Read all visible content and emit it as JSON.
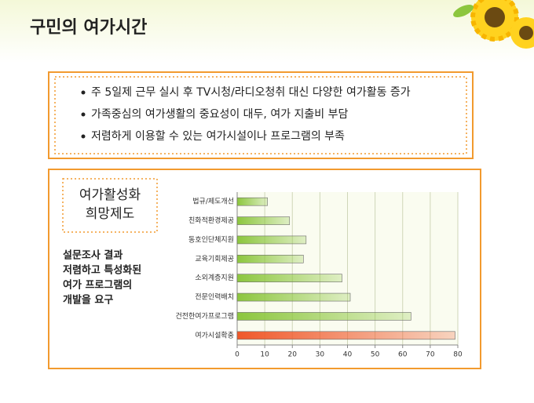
{
  "header": {
    "title": "구민의 여가시간"
  },
  "bullets": [
    "주 5일제 근무 실시 후 TV시청/라디오청취 대신 다양한 여가활동 증가",
    "가족중심의 여가생활의 중요성이 대두, 여가 지출비 부담",
    "저렴하게 이용할 수 있는 여가시설이나 프로그램의 부족"
  ],
  "box_label": [
    "여가활성화",
    "희망제도"
  ],
  "description": [
    "설문조사 결과",
    "저렴하고 특성화된",
    "여가 프로그램의",
    "개발을 요구"
  ],
  "chart_data": {
    "type": "hbar",
    "categories": [
      "법규/제도개선",
      "친화적환경제공",
      "동호인단체지원",
      "교육기회제공",
      "소외계층지원",
      "전문인력배치",
      "건전한여가프로그램",
      "여가시설확충"
    ],
    "values": [
      11,
      19,
      25,
      24,
      38,
      41,
      63,
      79
    ],
    "colors": [
      "#8cc63e",
      "#8cc63e",
      "#8cc63e",
      "#8cc63e",
      "#8cc63e",
      "#8cc63e",
      "#8cc63e",
      "#f0582a"
    ],
    "xlim": [
      0,
      80
    ],
    "xticks": [
      0,
      10,
      20,
      30,
      40,
      50,
      60,
      70,
      80
    ],
    "grid": true
  }
}
